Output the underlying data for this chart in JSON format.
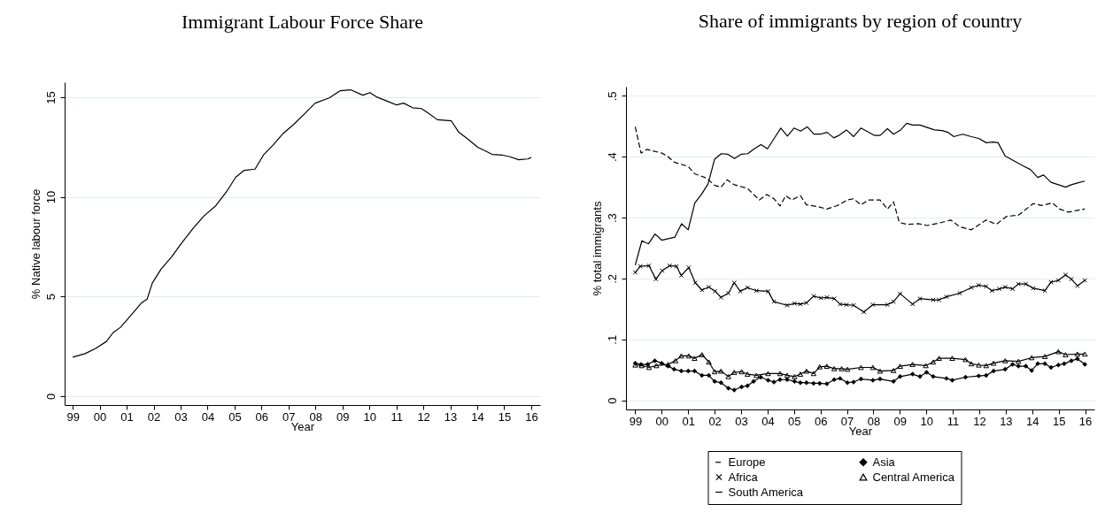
{
  "chart_data": [
    {
      "type": "line",
      "title": "Immigrant Labour Force Share",
      "xlabel": "Year",
      "ylabel": "% Native labour force",
      "xlim": [
        1998.7,
        2016.33
      ],
      "ylim": [
        -0.45,
        15.75
      ],
      "xticks": [
        {
          "value": 1999,
          "label": "99"
        },
        {
          "value": 2000,
          "label": "00"
        },
        {
          "value": 2001,
          "label": "01"
        },
        {
          "value": 2002,
          "label": "02"
        },
        {
          "value": 2003,
          "label": "03"
        },
        {
          "value": 2004,
          "label": "04"
        },
        {
          "value": 2005,
          "label": "05"
        },
        {
          "value": 2006,
          "label": "06"
        },
        {
          "value": 2007,
          "label": "07"
        },
        {
          "value": 2008,
          "label": "08"
        },
        {
          "value": 2009,
          "label": "09"
        },
        {
          "value": 2010,
          "label": "10"
        },
        {
          "value": 2011,
          "label": "11"
        },
        {
          "value": 2012,
          "label": "12"
        },
        {
          "value": 2013,
          "label": "13"
        },
        {
          "value": 2014,
          "label": "14"
        },
        {
          "value": 2015,
          "label": "15"
        },
        {
          "value": 2016,
          "label": "16"
        }
      ],
      "yticks": [
        0,
        5,
        10,
        15
      ],
      "grid": "y",
      "legend": false,
      "marker": "none",
      "line_style": "solid",
      "series": [
        {
          "color": "#000000",
          "x": [
            1999.0,
            1999.46,
            1999.85,
            2000.25,
            2000.5,
            2000.77,
            2001.17,
            2001.56,
            2001.76,
            2001.95,
            2002.28,
            2002.67,
            2003.0,
            2003.46,
            2003.86,
            2004.31,
            2004.71,
            2005.04,
            2005.36,
            2005.76,
            2006.09,
            2006.41,
            2006.81,
            2007.2,
            2007.6,
            2007.99,
            2008.51,
            2008.91,
            2009.3,
            2009.76,
            2010.02,
            2010.29,
            2010.68,
            2011.01,
            2011.27,
            2011.6,
            2011.93,
            2012.19,
            2012.52,
            2013.04,
            2013.31,
            2013.7,
            2014.03,
            2014.29,
            2014.55,
            2014.95,
            2015.21,
            2015.54,
            2015.87,
            2016.0
          ],
          "values": [
            1.95,
            2.13,
            2.39,
            2.74,
            3.19,
            3.45,
            4.07,
            4.69,
            4.87,
            5.67,
            6.38,
            6.99,
            7.61,
            8.41,
            9.03,
            9.56,
            10.27,
            10.98,
            11.33,
            11.39,
            12.13,
            12.57,
            13.19,
            13.64,
            14.17,
            14.7,
            14.96,
            15.32,
            15.37,
            15.1,
            15.23,
            15.0,
            14.79,
            14.61,
            14.7,
            14.47,
            14.43,
            14.2,
            13.87,
            13.81,
            13.25,
            12.84,
            12.48,
            12.31,
            12.13,
            12.09,
            12.01,
            11.86,
            11.9,
            11.97
          ]
        }
      ]
    },
    {
      "type": "line",
      "title": "Share of immigrants by region of country",
      "xlabel": "Year",
      "ylabel": "% total immigrants",
      "xlim": [
        1998.65,
        2016.35
      ],
      "ylim": [
        -0.015,
        0.515
      ],
      "xticks": [
        {
          "value": 1999,
          "label": "99"
        },
        {
          "value": 2000,
          "label": "00"
        },
        {
          "value": 2001,
          "label": "01"
        },
        {
          "value": 2002,
          "label": "02"
        },
        {
          "value": 2003,
          "label": "03"
        },
        {
          "value": 2004,
          "label": "04"
        },
        {
          "value": 2005,
          "label": "05"
        },
        {
          "value": 2006,
          "label": "06"
        },
        {
          "value": 2007,
          "label": "07"
        },
        {
          "value": 2008,
          "label": "08"
        },
        {
          "value": 2009,
          "label": "09"
        },
        {
          "value": 2010,
          "label": "10"
        },
        {
          "value": 2011,
          "label": "11"
        },
        {
          "value": 2012,
          "label": "12"
        },
        {
          "value": 2013,
          "label": "13"
        },
        {
          "value": 2014,
          "label": "14"
        },
        {
          "value": 2015,
          "label": "15"
        },
        {
          "value": 2016,
          "label": "16"
        }
      ],
      "yticks": [
        0,
        {
          "value": 0.1,
          "label": ".1"
        },
        {
          "value": 0.2,
          "label": ".2"
        },
        {
          "value": 0.3,
          "label": ".3"
        },
        {
          "value": 0.4,
          "label": ".4"
        },
        {
          "value": 0.5,
          "label": ".5"
        }
      ],
      "grid": "y",
      "legend": "bottom",
      "series": [
        {
          "name": "Europe",
          "color": "#000000",
          "line_style": "dashed",
          "marker": "none",
          "x": [
            1999.0,
            1999.22,
            1999.44,
            2000.0,
            2000.24,
            2000.47,
            2001.0,
            2001.24,
            2001.69,
            2002.0,
            2002.24,
            2002.47,
            2002.74,
            2003.24,
            2003.69,
            2003.97,
            2004.24,
            2004.47,
            2004.69,
            2004.91,
            2005.24,
            2005.47,
            2005.91,
            2006.24,
            2006.58,
            2006.7,
            2007.02,
            2007.25,
            2007.53,
            2007.81,
            2008.25,
            2008.53,
            2008.76,
            2008.98,
            2009.26,
            2009.7,
            2010.03,
            2010.48,
            2010.92,
            2011.26,
            2011.7,
            2012.26,
            2012.65,
            2013.03,
            2013.48,
            2014.04,
            2014.37,
            2014.76,
            2015.04,
            2015.37,
            2015.71,
            2015.99
          ],
          "values": [
            0.449,
            0.406,
            0.412,
            0.406,
            0.4,
            0.391,
            0.384,
            0.372,
            0.365,
            0.353,
            0.35,
            0.362,
            0.354,
            0.348,
            0.329,
            0.338,
            0.331,
            0.319,
            0.336,
            0.329,
            0.336,
            0.321,
            0.318,
            0.314,
            0.319,
            0.321,
            0.329,
            0.331,
            0.321,
            0.329,
            0.329,
            0.314,
            0.326,
            0.292,
            0.289,
            0.29,
            0.287,
            0.291,
            0.296,
            0.285,
            0.28,
            0.296,
            0.289,
            0.302,
            0.304,
            0.323,
            0.32,
            0.324,
            0.314,
            0.309,
            0.312,
            0.314
          ]
        },
        {
          "name": "Africa",
          "color": "#000000",
          "line_style": "solid",
          "marker": "cross",
          "x": [
            1999.0,
            1999.19,
            1999.52,
            1999.78,
            2000.02,
            2000.3,
            2000.56,
            2000.74,
            2001.02,
            2001.27,
            2001.52,
            2001.78,
            2002.02,
            2002.24,
            2002.52,
            2002.74,
            2002.97,
            2003.24,
            2003.58,
            2004.02,
            2004.24,
            2004.74,
            2005.02,
            2005.24,
            2005.47,
            2005.74,
            2006.02,
            2006.24,
            2006.52,
            2006.74,
            2006.98,
            2007.25,
            2007.64,
            2007.98,
            2008.53,
            2008.76,
            2009.01,
            2009.48,
            2009.76,
            2010.26,
            2010.48,
            2010.76,
            2011.26,
            2011.7,
            2011.98,
            2012.26,
            2012.48,
            2012.76,
            2012.98,
            2013.26,
            2013.48,
            2013.76,
            2014.04,
            2014.48,
            2014.71,
            2014.99,
            2015.26,
            2015.48,
            2015.71,
            2015.99
          ],
          "values": [
            0.21,
            0.22,
            0.221,
            0.199,
            0.213,
            0.221,
            0.22,
            0.205,
            0.218,
            0.193,
            0.181,
            0.186,
            0.179,
            0.169,
            0.176,
            0.193,
            0.179,
            0.185,
            0.18,
            0.179,
            0.162,
            0.156,
            0.159,
            0.158,
            0.16,
            0.171,
            0.168,
            0.169,
            0.167,
            0.158,
            0.157,
            0.156,
            0.145,
            0.157,
            0.157,
            0.162,
            0.175,
            0.158,
            0.167,
            0.165,
            0.165,
            0.17,
            0.176,
            0.185,
            0.189,
            0.187,
            0.18,
            0.183,
            0.186,
            0.183,
            0.191,
            0.191,
            0.184,
            0.18,
            0.194,
            0.197,
            0.206,
            0.199,
            0.188,
            0.197
          ]
        },
        {
          "name": "South America",
          "color": "#000000",
          "line_style": "solid",
          "marker": "none",
          "x": [
            1999.0,
            1999.25,
            1999.5,
            1999.75,
            2000.0,
            2000.5,
            2000.75,
            2001.0,
            2001.25,
            2001.5,
            2001.75,
            2002.0,
            2002.25,
            2002.5,
            2002.75,
            2003.0,
            2003.25,
            2003.5,
            2003.75,
            2004.0,
            2004.25,
            2004.5,
            2004.75,
            2005.0,
            2005.25,
            2005.5,
            2005.75,
            2006.0,
            2006.25,
            2006.5,
            2006.7,
            2006.98,
            2007.25,
            2007.53,
            2008.03,
            2008.25,
            2008.53,
            2008.76,
            2009.03,
            2009.26,
            2009.48,
            2009.76,
            2010.03,
            2010.31,
            2010.59,
            2010.82,
            2011.04,
            2011.37,
            2011.7,
            2011.98,
            2012.26,
            2012.54,
            2012.71,
            2012.98,
            2013.32,
            2013.65,
            2013.93,
            2014.21,
            2014.43,
            2014.71,
            2014.99,
            2015.26,
            2015.48,
            2015.71,
            2015.99
          ],
          "values": [
            0.222,
            0.262,
            0.257,
            0.273,
            0.263,
            0.268,
            0.29,
            0.28,
            0.324,
            0.338,
            0.355,
            0.396,
            0.405,
            0.404,
            0.397,
            0.404,
            0.405,
            0.413,
            0.42,
            0.413,
            0.43,
            0.447,
            0.434,
            0.447,
            0.442,
            0.449,
            0.437,
            0.437,
            0.44,
            0.431,
            0.435,
            0.444,
            0.433,
            0.447,
            0.435,
            0.435,
            0.446,
            0.437,
            0.444,
            0.455,
            0.452,
            0.452,
            0.448,
            0.444,
            0.443,
            0.44,
            0.433,
            0.437,
            0.433,
            0.43,
            0.423,
            0.424,
            0.423,
            0.401,
            0.393,
            0.385,
            0.379,
            0.366,
            0.37,
            0.358,
            0.354,
            0.35,
            0.354,
            0.357,
            0.36
          ]
        },
        {
          "name": "Asia",
          "color": "#000000",
          "line_style": "solid",
          "marker": "diamond",
          "x": [
            1999.0,
            1999.22,
            1999.47,
            1999.74,
            2000.0,
            2000.24,
            2000.47,
            2000.74,
            2001.0,
            2001.24,
            2001.52,
            2001.78,
            2002.0,
            2002.24,
            2002.52,
            2002.74,
            2003.02,
            2003.24,
            2003.47,
            2003.74,
            2004.02,
            2004.24,
            2004.47,
            2004.74,
            2005.02,
            2005.24,
            2005.47,
            2005.74,
            2005.97,
            2006.24,
            2006.52,
            2006.74,
            2007.02,
            2007.25,
            2007.53,
            2007.98,
            2008.25,
            2008.76,
            2009.01,
            2009.48,
            2009.76,
            2010.01,
            2010.26,
            2010.76,
            2010.98,
            2011.48,
            2011.98,
            2012.26,
            2012.54,
            2012.98,
            2013.26,
            2013.48,
            2013.76,
            2013.98,
            2014.21,
            2014.48,
            2014.71,
            2014.99,
            2015.21,
            2015.48,
            2015.71,
            2015.99
          ],
          "values": [
            0.061,
            0.059,
            0.059,
            0.065,
            0.061,
            0.056,
            0.051,
            0.048,
            0.048,
            0.048,
            0.041,
            0.041,
            0.031,
            0.029,
            0.02,
            0.017,
            0.022,
            0.024,
            0.031,
            0.038,
            0.033,
            0.03,
            0.034,
            0.034,
            0.031,
            0.029,
            0.029,
            0.028,
            0.028,
            0.027,
            0.034,
            0.036,
            0.029,
            0.03,
            0.035,
            0.033,
            0.035,
            0.031,
            0.039,
            0.043,
            0.039,
            0.046,
            0.039,
            0.036,
            0.033,
            0.038,
            0.04,
            0.041,
            0.048,
            0.051,
            0.059,
            0.056,
            0.056,
            0.049,
            0.06,
            0.06,
            0.054,
            0.058,
            0.06,
            0.065,
            0.068,
            0.059
          ]
        },
        {
          "name": "Central America",
          "color": "#000000",
          "line_style": "solid",
          "marker": "triangle",
          "x": [
            1999.0,
            1999.24,
            1999.52,
            1999.8,
            2000.24,
            2000.52,
            2000.74,
            2001.02,
            2001.24,
            2001.52,
            2001.78,
            2002.0,
            2002.24,
            2002.52,
            2002.74,
            2003.02,
            2003.24,
            2003.58,
            2004.02,
            2004.47,
            2004.74,
            2005.02,
            2005.24,
            2005.47,
            2005.74,
            2005.97,
            2006.24,
            2006.52,
            2006.8,
            2007.02,
            2007.53,
            2007.98,
            2008.25,
            2008.76,
            2009.01,
            2009.48,
            2009.98,
            2010.26,
            2010.48,
            2010.98,
            2011.48,
            2011.7,
            2011.98,
            2012.26,
            2012.54,
            2012.98,
            2013.48,
            2013.98,
            2014.48,
            2014.99,
            2015.26,
            2015.71,
            2015.99
          ],
          "values": [
            0.058,
            0.057,
            0.054,
            0.057,
            0.059,
            0.065,
            0.073,
            0.073,
            0.069,
            0.075,
            0.063,
            0.047,
            0.048,
            0.039,
            0.046,
            0.047,
            0.043,
            0.041,
            0.044,
            0.044,
            0.041,
            0.039,
            0.043,
            0.048,
            0.044,
            0.055,
            0.056,
            0.052,
            0.052,
            0.051,
            0.054,
            0.054,
            0.048,
            0.049,
            0.056,
            0.059,
            0.057,
            0.063,
            0.069,
            0.069,
            0.067,
            0.06,
            0.058,
            0.057,
            0.061,
            0.065,
            0.064,
            0.07,
            0.072,
            0.08,
            0.075,
            0.076,
            0.076
          ]
        }
      ]
    }
  ]
}
